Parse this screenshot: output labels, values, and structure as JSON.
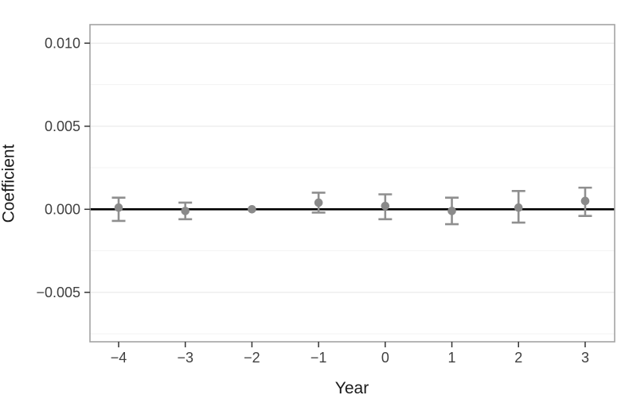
{
  "chart_data": {
    "type": "scatter",
    "subtype": "coefficient-plot-with-error-bars",
    "title": "",
    "xlabel": "Year",
    "ylabel": "Coefficient",
    "x": [
      -4,
      -3,
      -2,
      -1,
      0,
      1,
      2,
      3
    ],
    "series": [
      {
        "name": "coefficient",
        "values": [
          0.0001,
          -0.0001,
          0.0,
          0.0004,
          0.0002,
          -0.0001,
          0.0001,
          0.0005
        ],
        "ci_low": [
          -0.0007,
          -0.0006,
          null,
          -0.0002,
          -0.0006,
          -0.0009,
          -0.0008,
          -0.0004
        ],
        "ci_high": [
          0.0007,
          0.0004,
          null,
          0.001,
          0.0009,
          0.0007,
          0.0011,
          0.0013
        ]
      }
    ],
    "reference_line_y": 0.0,
    "reference_x_omitted_ci": -2,
    "x_ticks": [
      {
        "v": -4,
        "label": "−4"
      },
      {
        "v": -3,
        "label": "−3"
      },
      {
        "v": -2,
        "label": "−2"
      },
      {
        "v": -1,
        "label": "−1"
      },
      {
        "v": 0,
        "label": "0"
      },
      {
        "v": 1,
        "label": "1"
      },
      {
        "v": 2,
        "label": "2"
      },
      {
        "v": 3,
        "label": "3"
      }
    ],
    "y_ticks": [
      {
        "v": 0.01,
        "label": "0.010"
      },
      {
        "v": 0.005,
        "label": "0.005"
      },
      {
        "v": 0.0,
        "label": "0.000"
      },
      {
        "v": -0.005,
        "label": "−0.005"
      }
    ],
    "y_minor_gridlines": [
      0.0075,
      0.0025,
      -0.0025,
      -0.0075
    ],
    "ylim": [
      -0.008,
      0.0111
    ],
    "grid": "horizontal-only",
    "legend": "none",
    "colors": {
      "point": "#8a8a8a",
      "error_bar": "#8f8f8f",
      "zero_line": "#000000",
      "grid_major": "#e8e8e8",
      "grid_minor": "#f3f3f3",
      "panel_border": "#a3a3a3",
      "axis_tick": "#333333",
      "tick_label_text": "#404040",
      "axis_title_text": "#1a1a1a",
      "background": "#ffffff"
    }
  }
}
